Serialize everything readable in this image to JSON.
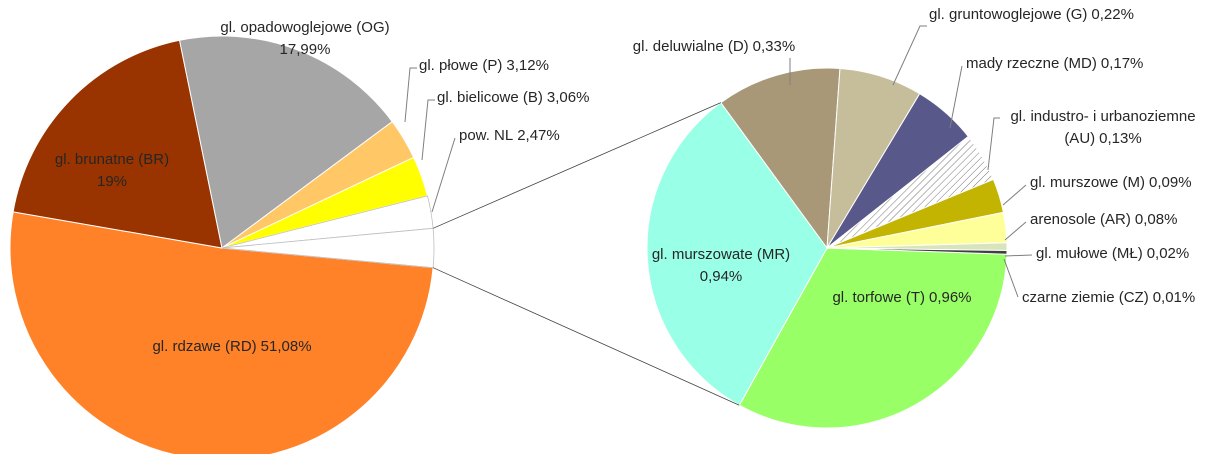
{
  "chart_data": [
    {
      "type": "pie",
      "categories": [
        "gl. rdzawe (RD)",
        "gl. brunatne (BR)",
        "gl. opadowoglejowe (OG)",
        "gl. płowe (P)",
        "gl. bielicowe (B)",
        "pow. NL",
        null
      ],
      "values": [
        51.08,
        19,
        17.99,
        3.12,
        3.06,
        2.47,
        2.95
      ],
      "value_labels": [
        "51,08%",
        "19%",
        "17,99%",
        "3,12%",
        "3,06%",
        "2,47%",
        null
      ],
      "colors": [
        "#ff8229",
        "#993300",
        "#a6a6a6",
        "#ffc766",
        "#ffff00",
        "#ffffff",
        "#ffffff"
      ]
    },
    {
      "type": "pie",
      "categories": [
        "gl. torfowe (T)",
        "gl. murszowate (MR)",
        "gl. deluwialne (D)",
        "gl. gruntowoglejowe (G)",
        "mady rzeczne (MD)",
        "gl. industro- i urbanoziemne (AU)",
        "gl. murszowe (M)",
        "arenosole (AR)",
        "gl. mułowe (MŁ)",
        "czarne ziemie (CZ)"
      ],
      "values": [
        0.96,
        0.94,
        0.33,
        0.22,
        0.17,
        0.13,
        0.09,
        0.08,
        0.02,
        0.01
      ],
      "value_labels": [
        "0,96%",
        "0,94%",
        "0,33%",
        "0,22%",
        "0,17%",
        "0,13%",
        "0,09%",
        "0,08%",
        "0,02%",
        "0,01%"
      ],
      "colors": [
        "#99ff66",
        "#99ffe6",
        "#a89878",
        "#c6bd9a",
        "#58598a",
        "url(#hatch)",
        "#c2b400",
        "#ffff99",
        "#d8e4bc",
        "#404040"
      ]
    }
  ]
}
